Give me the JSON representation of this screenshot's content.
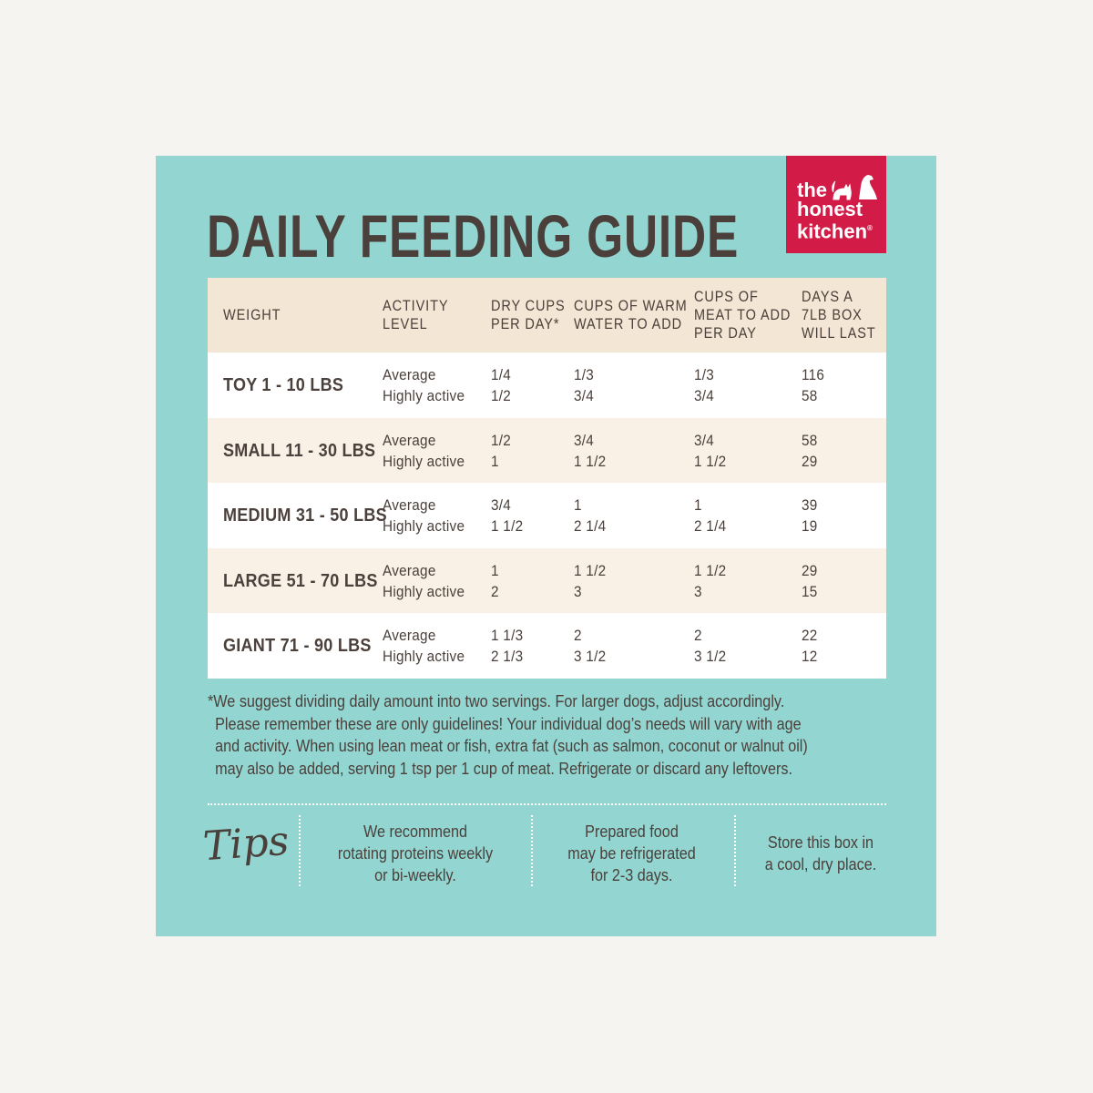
{
  "title": "DAILY FEEDING GUIDE",
  "brand": {
    "logo_text": [
      "the",
      "honest",
      "kitchen"
    ],
    "registered": "®",
    "color": "#d21b47"
  },
  "table": {
    "headers": [
      "WEIGHT",
      "ACTIVITY\nLEVEL",
      "DRY CUPS\nPER DAY*",
      "CUPS OF WARM\nWATER TO ADD",
      "CUPS OF\nMEAT TO ADD\nPER DAY",
      "DAYS A\n7LB BOX\nWILL LAST"
    ],
    "rows": [
      {
        "weight": "TOY 1 - 10 LBS",
        "activity": "Average\nHighly active",
        "dry": "1/4\n1/2",
        "water": "1/3\n3/4",
        "meat": "1/3\n3/4",
        "days": "116\n58"
      },
      {
        "weight": "SMALL 11 - 30 LBS",
        "activity": "Average\nHighly active",
        "dry": "1/2\n1",
        "water": "3/4\n1 1/2",
        "meat": "3/4\n1 1/2",
        "days": "58\n29"
      },
      {
        "weight": "MEDIUM 31 - 50 LBS",
        "activity": "Average\nHighly active",
        "dry": "3/4\n1 1/2",
        "water": "1\n2 1/4",
        "meat": "1\n2 1/4",
        "days": "39\n19"
      },
      {
        "weight": "LARGE 51 - 70 LBS",
        "activity": "Average\nHighly active",
        "dry": "1\n2",
        "water": "1 1/2\n3",
        "meat": "1 1/2\n3",
        "days": "29\n15"
      },
      {
        "weight": "GIANT 71 - 90 LBS",
        "activity": "Average\nHighly active",
        "dry": "1 1/3\n2 1/3",
        "water": "2\n3 1/2",
        "meat": "2\n3 1/2",
        "days": "22\n12"
      }
    ]
  },
  "footnote": [
    "*We suggest dividing daily amount into two servings. For larger dogs, adjust accordingly.",
    "Please remember these are only guidelines! Your individual dog’s needs will vary with age",
    "and activity. When using lean meat or fish, extra fat (such as salmon, coconut or walnut oil)",
    "may also be added, serving 1 tsp per 1 cup of meat. Refrigerate or discard any leftovers."
  ],
  "tips": {
    "label": "Tips",
    "items": [
      "We recommend\nrotating proteins weekly\nor bi-weekly.",
      "Prepared food\nmay be refrigerated\nfor 2-3 days.",
      "Store this box in\na cool, dry place."
    ]
  },
  "colors": {
    "background": "#93d5d0",
    "header": "#f3e6d4",
    "alt_row": "#faf1e6",
    "text": "#4a3f3a"
  }
}
